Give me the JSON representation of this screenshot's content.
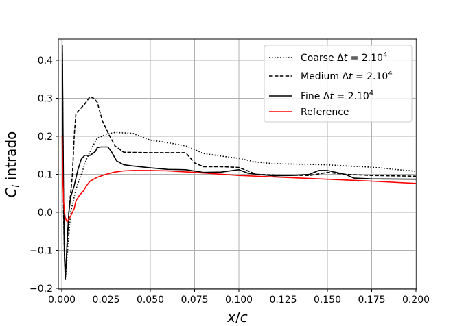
{
  "chart_data": {
    "type": "line",
    "title": "",
    "xlabel": "x/c",
    "ylabel": "C_f intrado",
    "xlim": [
      -0.001,
      0.201
    ],
    "ylim": [
      -0.205,
      0.455
    ],
    "grid": true,
    "legend_position": "upper right",
    "xticks": [
      "0.000",
      "0.025",
      "0.050",
      "0.075",
      "0.100",
      "0.125",
      "0.150",
      "0.175",
      "0.200"
    ],
    "yticks": [
      "−0.2",
      "−0.1",
      "0.0",
      "0.1",
      "0.2",
      "0.3",
      "0.4"
    ],
    "series": [
      {
        "name": "Coarse Δt = 2.10^4",
        "style": "dotted",
        "color": "#000000",
        "x": [
          0.0003,
          0.001,
          0.0015,
          0.002,
          0.003,
          0.005,
          0.008,
          0.011,
          0.014,
          0.017,
          0.02,
          0.025,
          0.03,
          0.04,
          0.05,
          0.06,
          0.07,
          0.08,
          0.09,
          0.1,
          0.11,
          0.12,
          0.13,
          0.14,
          0.15,
          0.16,
          0.17,
          0.18,
          0.19,
          0.2
        ],
        "y": [
          0.38,
          0.0,
          -0.12,
          -0.18,
          -0.12,
          0.0,
          0.06,
          0.1,
          0.14,
          0.17,
          0.195,
          0.205,
          0.21,
          0.208,
          0.19,
          0.183,
          0.175,
          0.155,
          0.148,
          0.142,
          0.132,
          0.128,
          0.127,
          0.126,
          0.125,
          0.122,
          0.12,
          0.117,
          0.112,
          0.108
        ]
      },
      {
        "name": "Medium Δt = 2.10^4",
        "style": "dashed",
        "color": "#000000",
        "x": [
          0.0003,
          0.001,
          0.0015,
          0.002,
          0.003,
          0.004,
          0.005,
          0.006,
          0.007,
          0.008,
          0.01,
          0.013,
          0.016,
          0.018,
          0.02,
          0.023,
          0.026,
          0.03,
          0.035,
          0.05,
          0.065,
          0.07,
          0.075,
          0.08,
          0.09,
          0.1,
          0.11,
          0.12,
          0.14,
          0.15,
          0.16,
          0.175,
          0.2
        ],
        "y": [
          0.42,
          0.0,
          -0.12,
          -0.17,
          -0.1,
          0.0,
          0.05,
          0.1,
          0.2,
          0.26,
          0.27,
          0.285,
          0.305,
          0.3,
          0.29,
          0.24,
          0.21,
          0.175,
          0.158,
          0.157,
          0.157,
          0.157,
          0.13,
          0.12,
          0.12,
          0.118,
          0.1,
          0.098,
          0.097,
          0.105,
          0.1,
          0.097,
          0.095
        ]
      },
      {
        "name": "Fine Δt = 2.10^4",
        "style": "solid",
        "color": "#000000",
        "x": [
          0.0003,
          0.001,
          0.0015,
          0.002,
          0.003,
          0.004,
          0.005,
          0.007,
          0.009,
          0.011,
          0.013,
          0.016,
          0.019,
          0.02,
          0.022,
          0.026,
          0.028,
          0.031,
          0.035,
          0.04,
          0.05,
          0.06,
          0.07,
          0.08,
          0.09,
          0.1,
          0.105,
          0.11,
          0.12,
          0.13,
          0.14,
          0.145,
          0.15,
          0.16,
          0.165,
          0.175,
          0.2
        ],
        "y": [
          0.44,
          0.05,
          -0.1,
          -0.175,
          -0.08,
          0.0,
          0.04,
          0.07,
          0.11,
          0.14,
          0.15,
          0.15,
          0.16,
          0.17,
          0.172,
          0.172,
          0.16,
          0.135,
          0.125,
          0.122,
          0.117,
          0.113,
          0.112,
          0.105,
          0.106,
          0.112,
          0.103,
          0.1,
          0.096,
          0.097,
          0.1,
          0.11,
          0.11,
          0.1,
          0.09,
          0.088,
          0.087
        ]
      },
      {
        "name": "Reference",
        "style": "solid",
        "color": "#ff0000",
        "x": [
          0.0002,
          0.0005,
          0.001,
          0.0015,
          0.002,
          0.003,
          0.005,
          0.007,
          0.008,
          0.01,
          0.012,
          0.014,
          0.016,
          0.02,
          0.025,
          0.03,
          0.035,
          0.04,
          0.05,
          0.06,
          0.075,
          0.1,
          0.125,
          0.15,
          0.175,
          0.2
        ],
        "y": [
          0.2,
          0.1,
          0.03,
          0.0,
          -0.015,
          -0.025,
          -0.01,
          0.01,
          0.03,
          0.045,
          0.055,
          0.07,
          0.082,
          0.092,
          0.1,
          0.106,
          0.109,
          0.11,
          0.11,
          0.109,
          0.105,
          0.097,
          0.092,
          0.087,
          0.082,
          0.076
        ]
      }
    ]
  },
  "legend": {
    "items": [
      {
        "label_main": "Coarse ",
        "label_dt": "Δ",
        "label_t": "t",
        "label_eq": " = 2.10",
        "label_exp": "4"
      },
      {
        "label_main": "Medium ",
        "label_dt": "Δ",
        "label_t": "t",
        "label_eq": " = 2.10",
        "label_exp": "4"
      },
      {
        "label_main": "Fine ",
        "label_dt": "Δ",
        "label_t": "t",
        "label_eq": " = 2.10",
        "label_exp": "4"
      },
      {
        "label_main": "Reference"
      }
    ]
  },
  "axes": {
    "xlabel_x": "x",
    "xlabel_slash": "/",
    "xlabel_c": "c",
    "ylabel_C": "C",
    "ylabel_f": "f",
    "ylabel_rest": " intrado"
  }
}
